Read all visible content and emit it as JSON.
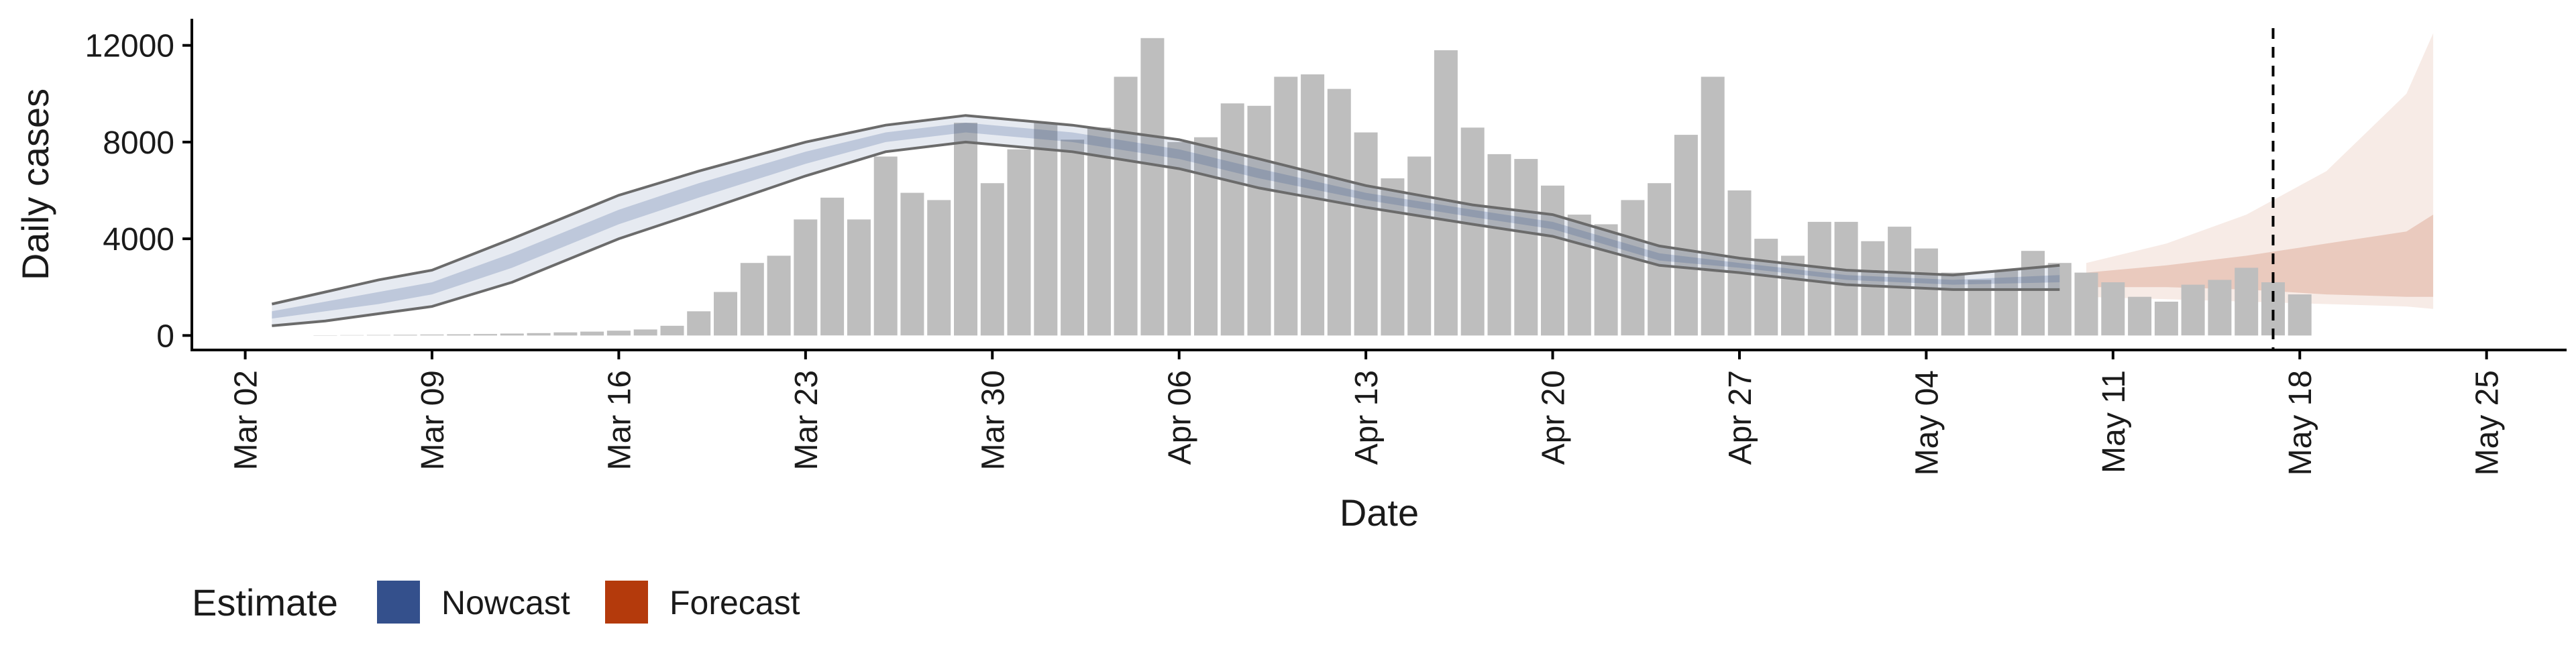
{
  "chart_data": {
    "type": "bar",
    "xlabel": "Date",
    "ylabel": "Daily cases",
    "x_axis": {
      "type": "date",
      "range": [
        "2020-02-29",
        "2020-05-28"
      ],
      "ticks": [
        {
          "date": "2020-03-02",
          "label": "Mar 02"
        },
        {
          "date": "2020-03-09",
          "label": "Mar 09"
        },
        {
          "date": "2020-03-16",
          "label": "Mar 16"
        },
        {
          "date": "2020-03-23",
          "label": "Mar 23"
        },
        {
          "date": "2020-03-30",
          "label": "Mar 30"
        },
        {
          "date": "2020-04-06",
          "label": "Apr 06"
        },
        {
          "date": "2020-04-13",
          "label": "Apr 13"
        },
        {
          "date": "2020-04-20",
          "label": "Apr 20"
        },
        {
          "date": "2020-04-27",
          "label": "Apr 27"
        },
        {
          "date": "2020-05-04",
          "label": "May 04"
        },
        {
          "date": "2020-05-11",
          "label": "May 11"
        },
        {
          "date": "2020-05-18",
          "label": "May 18"
        },
        {
          "date": "2020-05-25",
          "label": "May 25"
        }
      ]
    },
    "y_axis": {
      "range": [
        -600,
        13100
      ],
      "ticks": [
        0,
        4000,
        8000,
        12000
      ],
      "tick_labels": [
        "0",
        "4000",
        "8000",
        "12000"
      ]
    },
    "grid": false,
    "vline_date": "2020-05-17",
    "legend": {
      "title": "Estimate",
      "position": "bottom-left",
      "entries": [
        {
          "label": "Nowcast",
          "color": "#34508c"
        },
        {
          "label": "Forecast",
          "color": "#b43a0c"
        }
      ]
    },
    "colors": {
      "bars": "#bebebe",
      "nowcast": "#34508c",
      "forecast": "#b43a0c",
      "band_lines": "#6b6b6b"
    },
    "bars": {
      "start_date": "2020-03-05",
      "values": [
        10,
        15,
        20,
        30,
        40,
        50,
        60,
        80,
        100,
        130,
        160,
        200,
        250,
        400,
        1000,
        1800,
        3000,
        3300,
        4800,
        5700,
        4800,
        7400,
        5900,
        5600,
        8800,
        6300,
        7700,
        8800,
        8100,
        8600,
        10700,
        12300,
        8000,
        8200,
        9600,
        9500,
        10700,
        10800,
        10200,
        8400,
        6500,
        7400,
        11800,
        8600,
        7500,
        7300,
        6200,
        5000,
        4600,
        5600,
        6300,
        8300,
        10700,
        6000,
        4000,
        3300,
        4700,
        4700,
        3900,
        4500,
        3600,
        2600,
        2300,
        2700,
        3500,
        3000,
        2600,
        2200,
        1600,
        1400,
        2100,
        2300,
        2800,
        2200,
        1700
      ]
    },
    "nowcast": {
      "dates": [
        "2020-03-03",
        "2020-03-05",
        "2020-03-07",
        "2020-03-09",
        "2020-03-12",
        "2020-03-16",
        "2020-03-19",
        "2020-03-23",
        "2020-03-26",
        "2020-03-29",
        "2020-04-02",
        "2020-04-06",
        "2020-04-09",
        "2020-04-13",
        "2020-04-17",
        "2020-04-20",
        "2020-04-24",
        "2020-04-27",
        "2020-05-01",
        "2020-05-05",
        "2020-05-09"
      ],
      "upper_90": [
        1300,
        1800,
        2300,
        2700,
        4000,
        5800,
        6800,
        8000,
        8700,
        9100,
        8700,
        8100,
        7300,
        6200,
        5400,
        5000,
        3700,
        3200,
        2700,
        2500,
        2900
      ],
      "upper_50": [
        1000,
        1400,
        1800,
        2200,
        3400,
        5200,
        6300,
        7600,
        8400,
        8800,
        8400,
        7700,
        6900,
        5900,
        5200,
        4700,
        3400,
        3000,
        2500,
        2300,
        2500
      ],
      "lower_50": [
        700,
        1000,
        1300,
        1700,
        2800,
        4600,
        5700,
        7100,
        8000,
        8400,
        8000,
        7300,
        6500,
        5600,
        4900,
        4400,
        3100,
        2800,
        2300,
        2100,
        2200
      ],
      "lower_90": [
        400,
        600,
        900,
        1200,
        2200,
        4000,
        5100,
        6600,
        7600,
        8000,
        7600,
        6900,
        6100,
        5300,
        4600,
        4100,
        2900,
        2600,
        2100,
        1900,
        1900
      ]
    },
    "forecast": {
      "dates": [
        "2020-05-10",
        "2020-05-13",
        "2020-05-16",
        "2020-05-19",
        "2020-05-22",
        "2020-05-23"
      ],
      "upper_90": [
        3000,
        3800,
        5000,
        6800,
        10000,
        12500
      ],
      "upper_50": [
        2600,
        2900,
        3300,
        3800,
        4300,
        5000
      ],
      "lower_50": [
        2000,
        2000,
        1900,
        1700,
        1600,
        1600
      ],
      "lower_90": [
        1600,
        1500,
        1400,
        1300,
        1200,
        1100
      ]
    }
  }
}
